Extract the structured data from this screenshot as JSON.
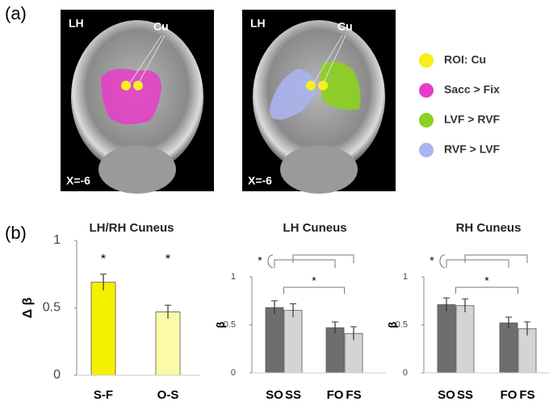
{
  "panel_a": {
    "label": "(a)",
    "images": [
      {
        "hemisphere": "LH",
        "roi": "Cu",
        "coord": "X=-6"
      },
      {
        "hemisphere": "LH",
        "roi": "Cu",
        "coord": "X=-6"
      }
    ],
    "legend": [
      {
        "name": "ROI: Cu",
        "color": "#f7ee1c"
      },
      {
        "name": "Sacc > Fix",
        "color": "#e63cc8"
      },
      {
        "name": "LVF > RVF",
        "color": "#8cd21e"
      },
      {
        "name": "RVF > LVF",
        "color": "#aab4ee"
      }
    ]
  },
  "panel_b": {
    "label": "(b)"
  },
  "chart_data": [
    {
      "type": "bar",
      "title": "LH/RH Cuneus",
      "y_label": "Δ β",
      "categories": [
        "S-F",
        "O-S"
      ],
      "values": [
        0.69,
        0.47
      ],
      "errors": [
        0.06,
        0.05
      ],
      "colors": [
        "#f5f000",
        "#fafaa8"
      ],
      "ylim": [
        0,
        1
      ],
      "yticks": [
        0,
        0.5,
        1
      ],
      "annotations": [
        "*",
        "*"
      ]
    },
    {
      "type": "bar",
      "title": "LH Cuneus",
      "y_label": "β",
      "categories": [
        "SO",
        "SS",
        "FO",
        "FS"
      ],
      "values": [
        0.68,
        0.65,
        0.47,
        0.41
      ],
      "errors": [
        0.07,
        0.07,
        0.06,
        0.07
      ],
      "colors": [
        "#6e6e6e",
        "#d4d4d4",
        "#6e6e6e",
        "#d4d4d4"
      ],
      "ylim": [
        0,
        1
      ],
      "yticks": [
        0,
        0.5,
        1
      ],
      "annotations": [
        "*",
        "*"
      ]
    },
    {
      "type": "bar",
      "title": "RH Cuneus",
      "y_label": "β",
      "categories": [
        "SO",
        "SS",
        "FO",
        "FS"
      ],
      "values": [
        0.71,
        0.7,
        0.52,
        0.46
      ],
      "errors": [
        0.07,
        0.07,
        0.06,
        0.07
      ],
      "colors": [
        "#6e6e6e",
        "#d4d4d4",
        "#6e6e6e",
        "#d4d4d4"
      ],
      "ylim": [
        0,
        1
      ],
      "yticks": [
        0,
        0.5,
        1
      ],
      "annotations": [
        "*",
        "*"
      ]
    }
  ]
}
